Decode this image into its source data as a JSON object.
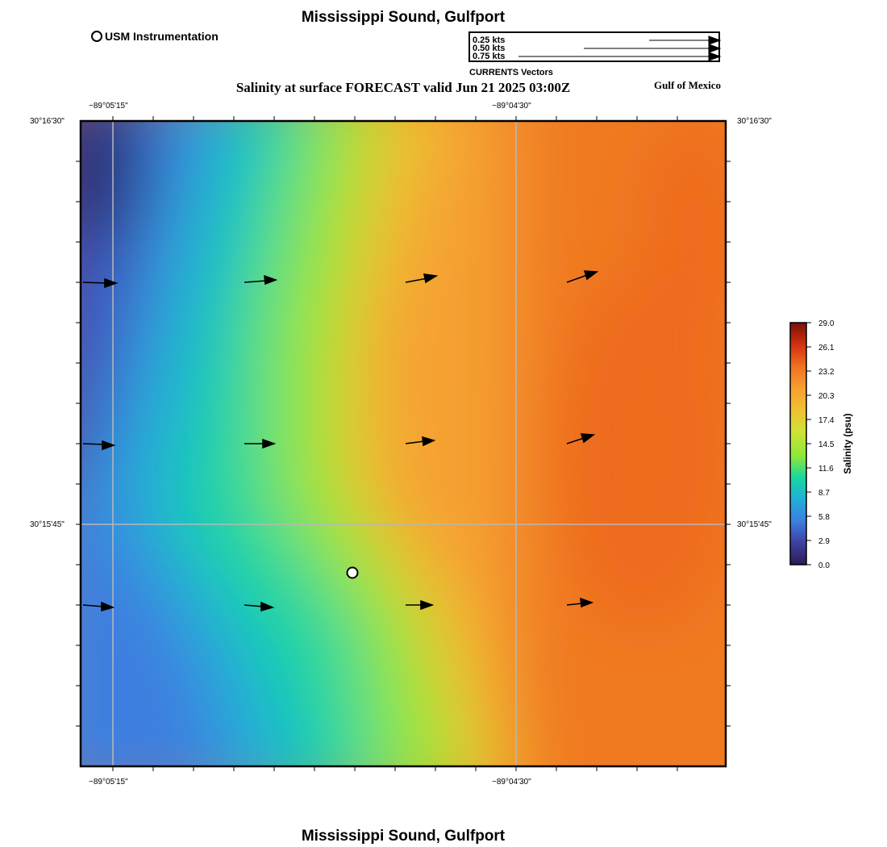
{
  "map": {
    "title_top": "Mississippi Sound, Gulfport",
    "title_bottom": "Mississippi Sound, Gulfport",
    "subtitle": "Salinity at surface FORECAST valid Jun 21 2025 03:00Z",
    "region_label": "Gulf of Mexico",
    "legend": {
      "station_label": "USM Instrumentation"
    },
    "vector_legend": {
      "caption": "CURRENTS Vectors",
      "rows": [
        "0.25 kts",
        "0.50 kts",
        "0.75 kts"
      ]
    },
    "axes": {
      "lon_left": "−89°05'15\"",
      "lon_right": "−89°04'30\"",
      "lat_top": "30°16'30\"",
      "lat_bottom": "30°15'45\""
    },
    "colorbar": {
      "label": "Salinity (psu)",
      "ticks": [
        "29.0",
        "26.1",
        "23.2",
        "20.3",
        "17.4",
        "14.5",
        "11.6",
        "8.7",
        "5.8",
        "2.9",
        "0.0"
      ],
      "colors": {
        "c0": "#2b1d57",
        "c1": "#3d3fa0",
        "c2": "#3d7fe0",
        "c3": "#1fb0d8",
        "c4": "#1ad6a0",
        "c5": "#8ee838",
        "c6": "#cfe235",
        "c7": "#f0c030",
        "c8": "#f5a030",
        "c9": "#f07020",
        "c10": "#d03010",
        "c11": "#7a1008"
      }
    }
  }
}
